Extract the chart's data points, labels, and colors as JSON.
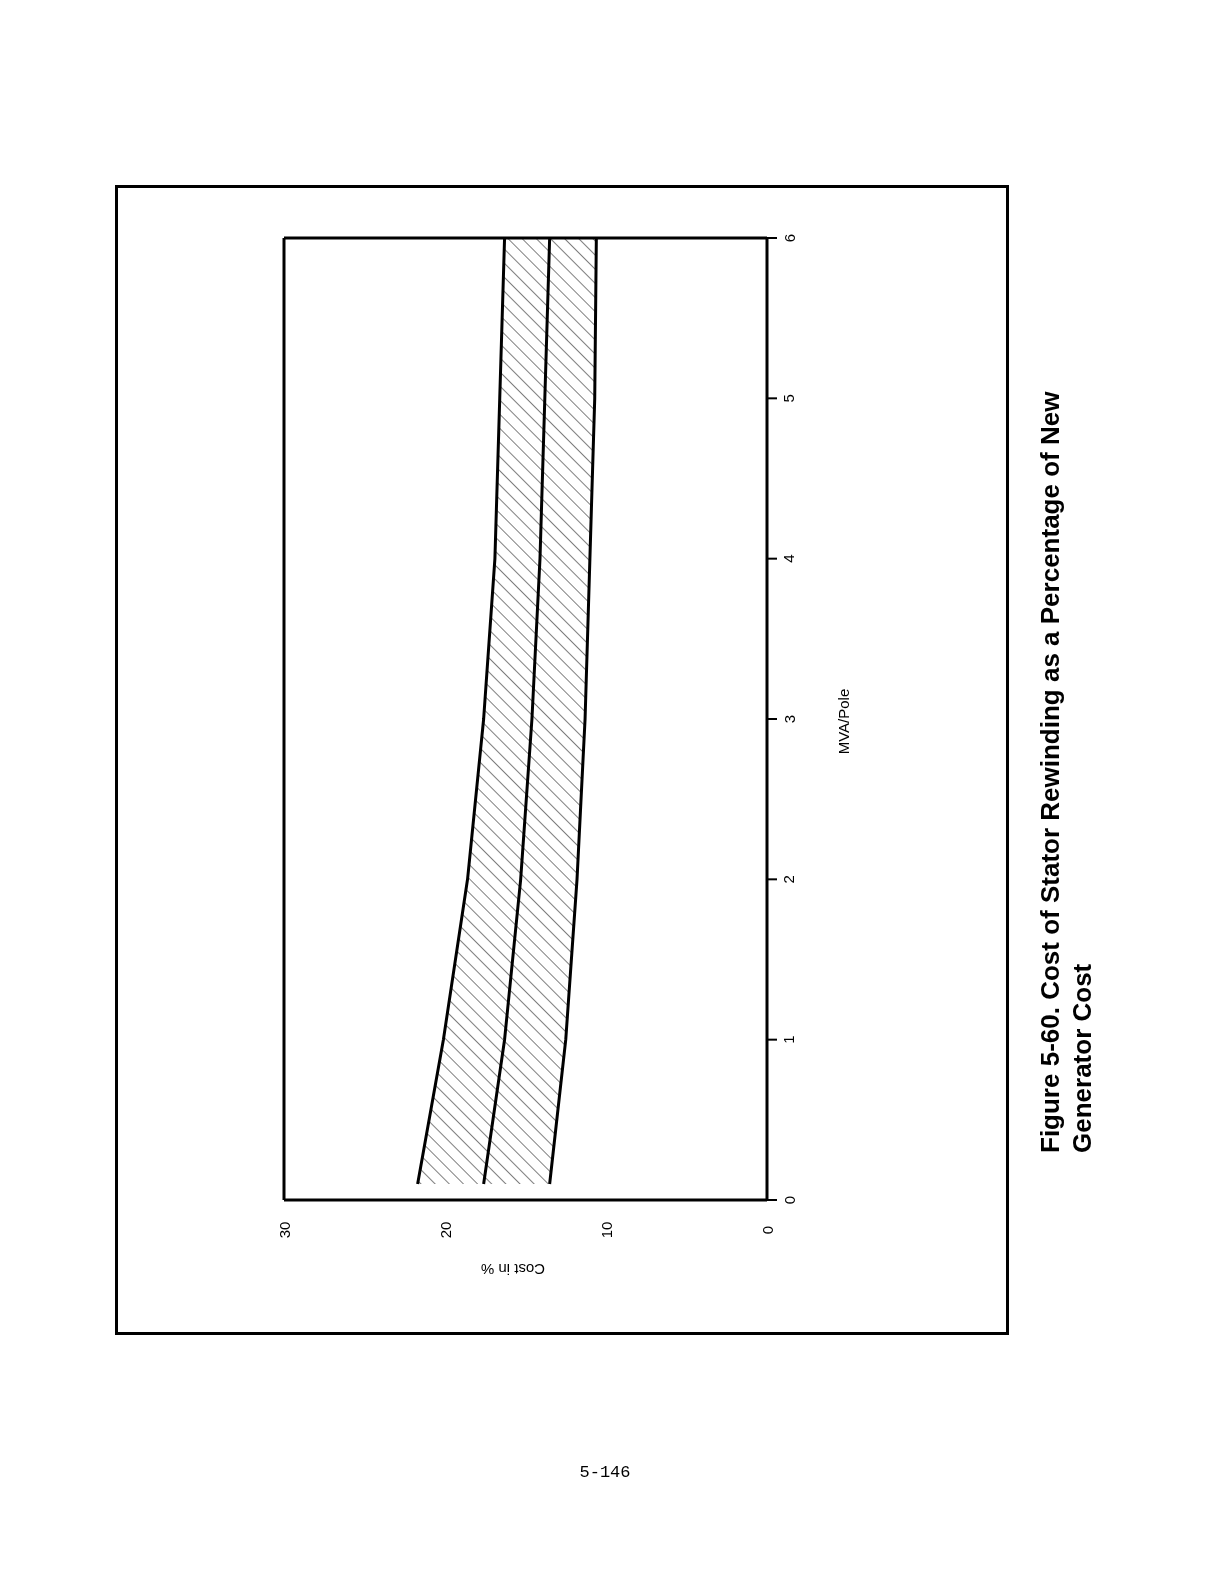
{
  "chart_data": {
    "type": "line",
    "title": "Figure 5-60.  Cost of Stator Rewinding as a Percentage of New Generator Cost",
    "xlabel": "Cost in %",
    "ylabel": "MVA/Pole",
    "series": [
      {
        "color": "#000000",
        "x": [
          21.7,
          20.1,
          18.6,
          17.6,
          16.9,
          16.6,
          16.3
        ],
        "values": [
          0.1,
          1,
          2,
          3,
          4,
          5,
          6
        ]
      },
      {
        "color": "#000000",
        "x": [
          17.6,
          16.3,
          15.3,
          14.6,
          14.1,
          13.8,
          13.5
        ],
        "values": [
          0.1,
          1,
          2,
          3,
          4,
          5,
          6
        ]
      },
      {
        "color": "#000000",
        "x": [
          13.5,
          12.5,
          11.8,
          11.3,
          11.0,
          10.7,
          10.6
        ],
        "values": [
          0.1,
          1,
          2,
          3,
          4,
          5,
          6
        ]
      }
    ],
    "xlim": [
      30,
      0
    ],
    "xticks": [
      30,
      20,
      10,
      0
    ],
    "ylim": [
      0,
      6
    ],
    "yticks": [
      0,
      1,
      2,
      3,
      4,
      5,
      6
    ],
    "grid": false,
    "legend": false,
    "marker": "none",
    "line_style": "solid",
    "annotations": [
      "5-146"
    ]
  }
}
